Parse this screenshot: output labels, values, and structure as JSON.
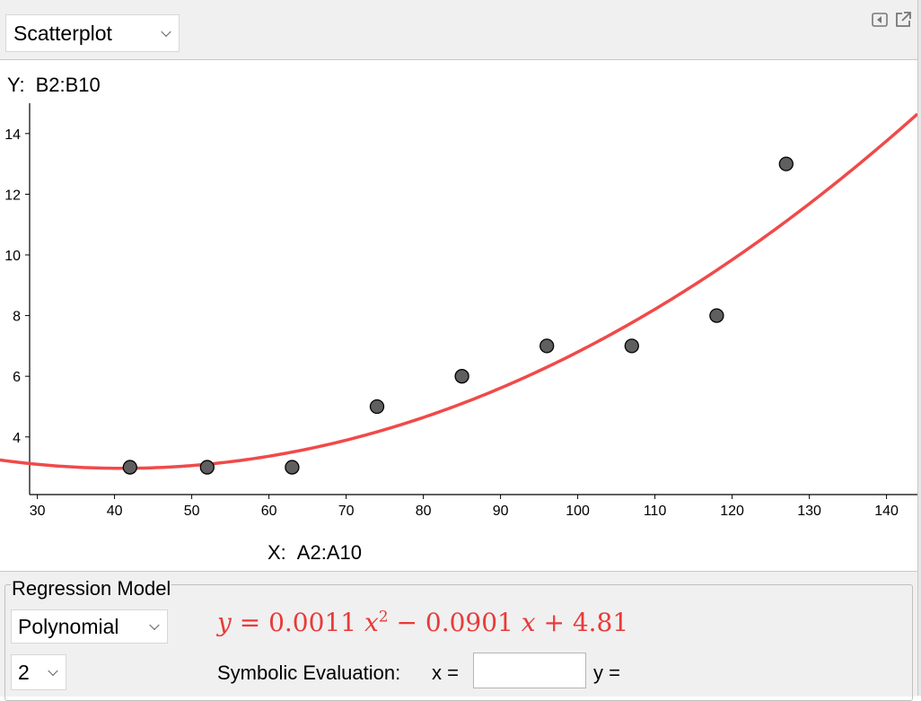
{
  "top_bar": {
    "chart_type_select": "Scatterplot",
    "icons": [
      "toggle-panel-icon",
      "pop-out-icon"
    ]
  },
  "plot": {
    "y_var_prefix": "Y:",
    "y_var_range": "B2:B10",
    "x_var_prefix": "X:",
    "x_var_range": "A2:A10"
  },
  "regression": {
    "group_title": "Regression Model",
    "model_select": "Polynomial",
    "degree_select": "2",
    "equation": {
      "lhs": "y",
      "eq": " = ",
      "a": "0.0011",
      "x1": "x",
      "exp": "2",
      "op1": " − ",
      "b": "0.0901",
      "x2": "x",
      "op2": " + ",
      "c": "4.81"
    },
    "symbolic_evaluation_label": "Symbolic Evaluation:",
    "x_eval_label": "x =",
    "x_eval_value": "",
    "y_eval_label": "y ="
  },
  "colors": {
    "regression_curve": "#f04a4a",
    "points_fill": "#5f5f5f",
    "points_stroke": "#000000"
  },
  "chart_data": {
    "type": "scatter",
    "x": [
      42,
      52,
      63,
      74,
      85,
      96,
      107,
      118,
      127
    ],
    "y": [
      3,
      3,
      3,
      5,
      6,
      7,
      7,
      8,
      13
    ],
    "x_ticks": [
      "30",
      "40",
      "50",
      "60",
      "70",
      "80",
      "90",
      "100",
      "110",
      "120",
      "130",
      "140"
    ],
    "y_ticks": [
      "4",
      "6",
      "8",
      "10",
      "12",
      "14"
    ],
    "xlim": [
      29,
      144
    ],
    "ylim": [
      2.1,
      15.0
    ],
    "grid": false,
    "regression": {
      "type": "polynomial",
      "degree": 2,
      "coefficients": [
        0.0011,
        -0.0901,
        4.81
      ]
    }
  }
}
